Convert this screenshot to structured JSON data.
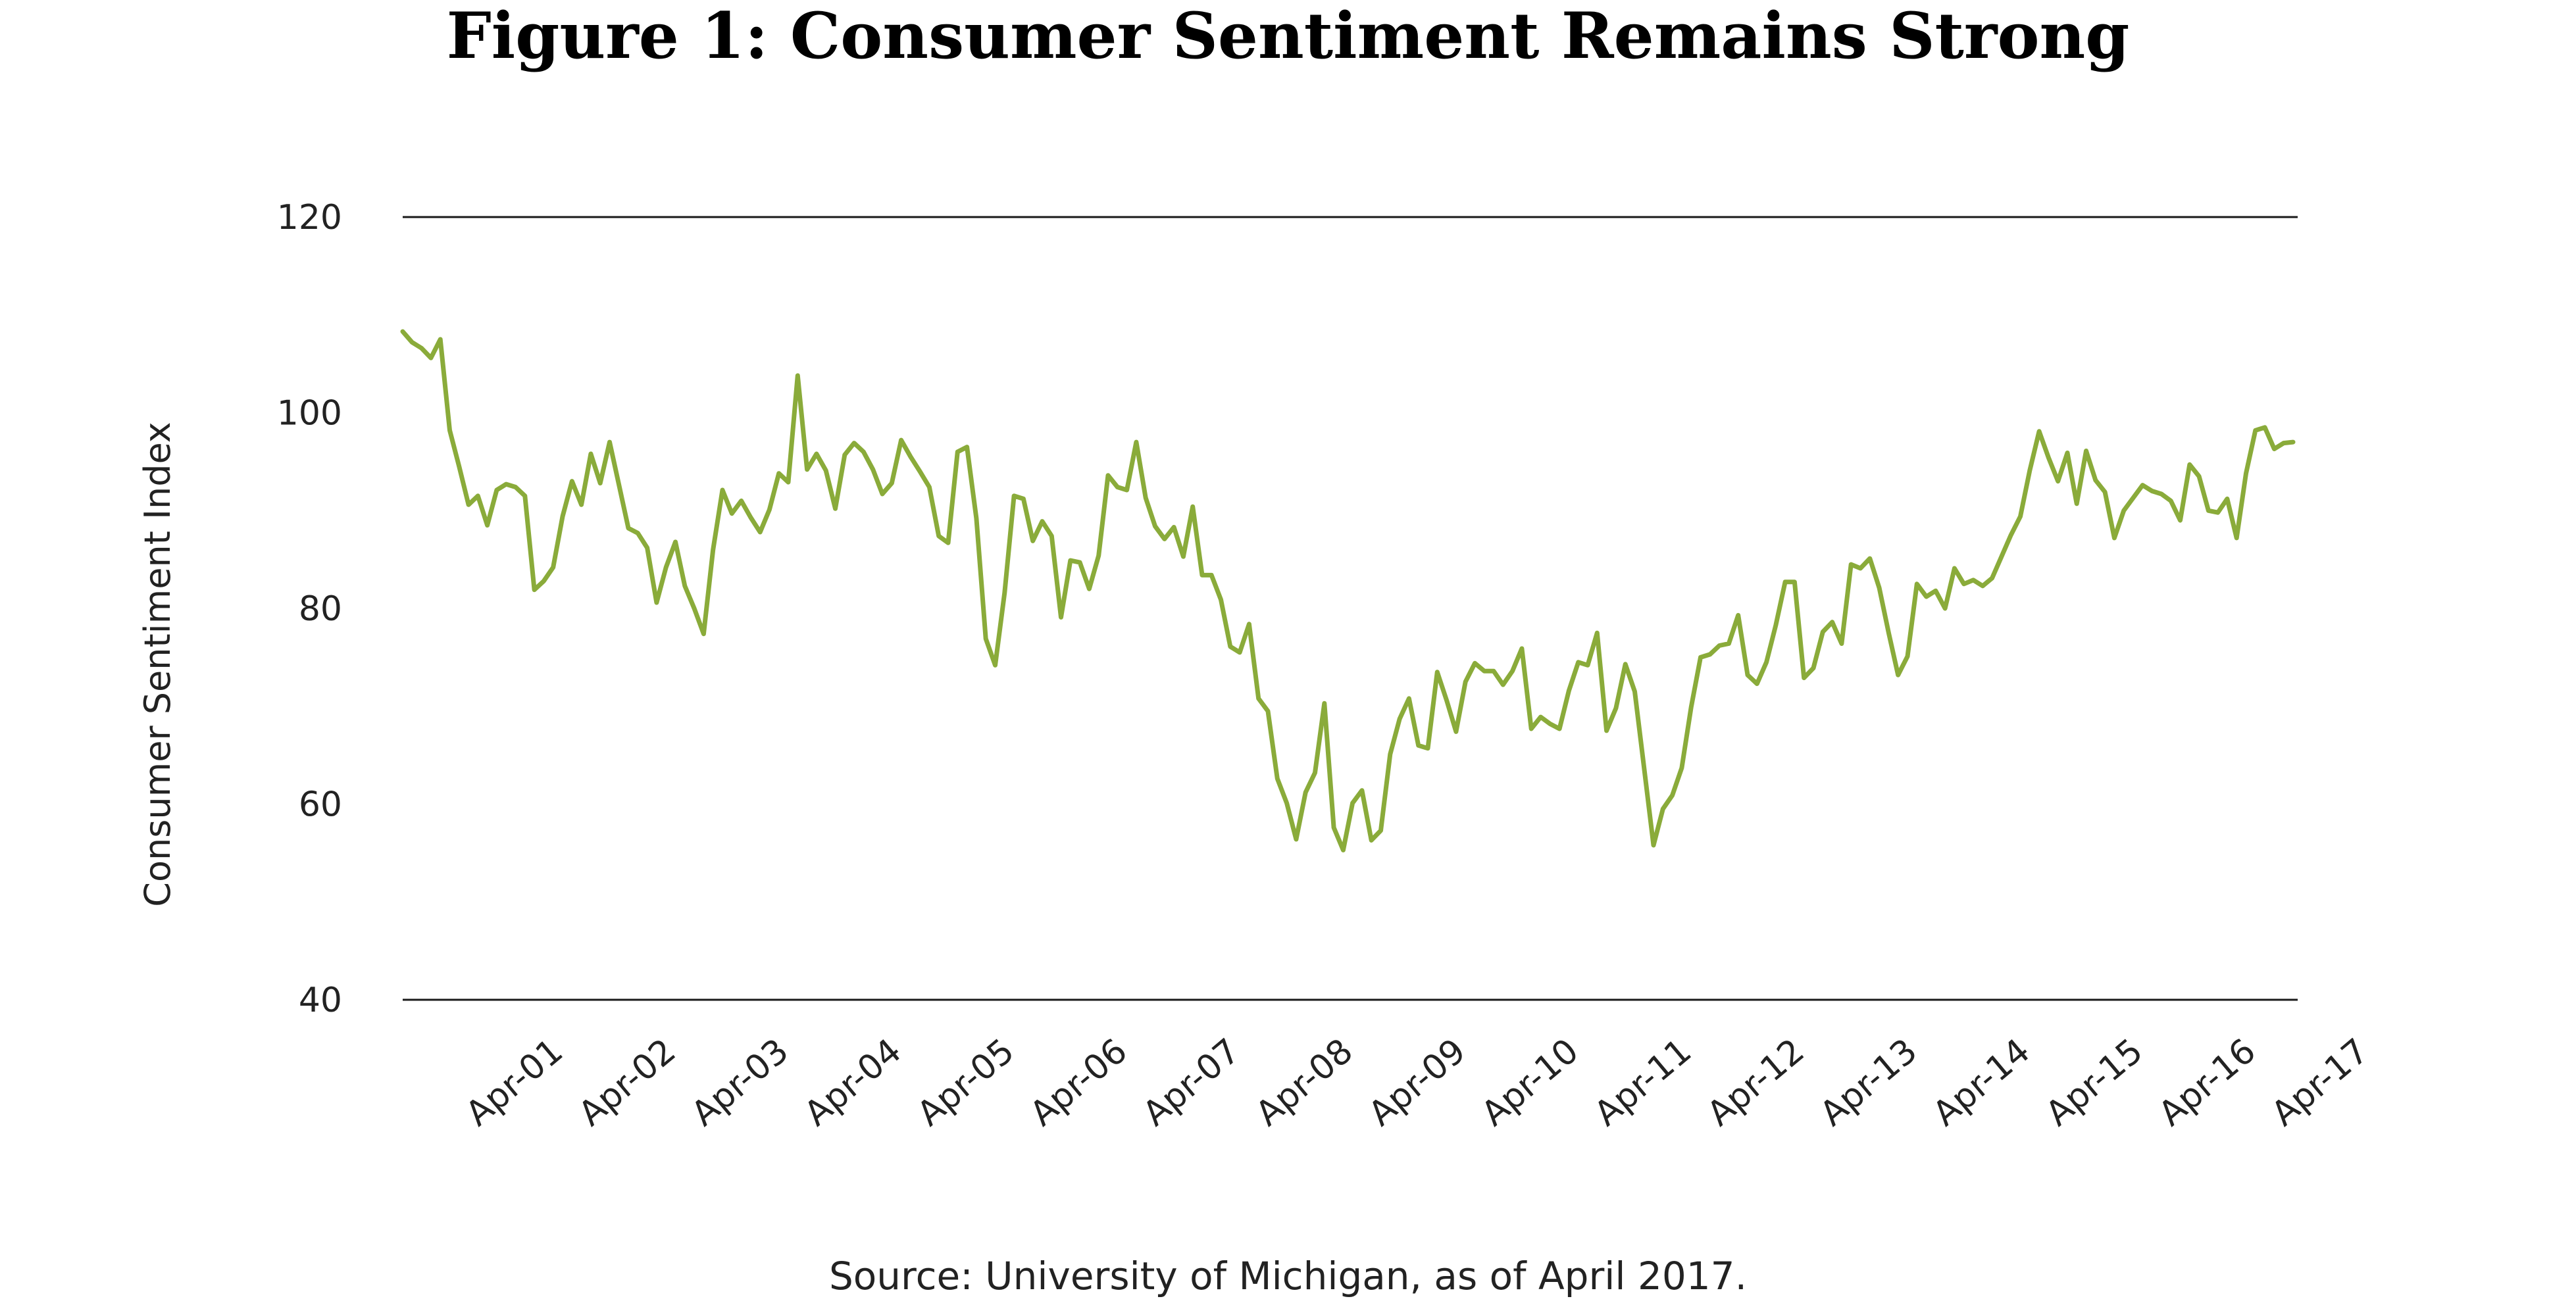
{
  "title": "Figure 1: Consumer Sentiment Remains Strong",
  "source": "Source: University of Michigan, as of April 2017.",
  "colors": {
    "line": "#8aab3a",
    "grid": "#1a1a1a",
    "text": "#222222"
  },
  "chart_data": {
    "type": "line",
    "title": "Figure 1: Consumer Sentiment Remains Strong",
    "xlabel": "",
    "ylabel": "Consumer Sentiment Index",
    "ylim": [
      40,
      120
    ],
    "yticks": [
      40,
      60,
      80,
      100,
      120
    ],
    "grid": "horizontal at 40 and 120",
    "legend": "none",
    "x_start": "Jan-00",
    "x_end": "Apr-17",
    "xtick_labels": [
      "Apr-01",
      "Apr-02",
      "Apr-03",
      "Apr-04",
      "Apr-05",
      "Apr-06",
      "Apr-07",
      "Apr-08",
      "Apr-09",
      "Apr-10",
      "Apr-11",
      "Apr-12",
      "Apr-13",
      "Apr-14",
      "Apr-15",
      "Apr-16",
      "Apr-17"
    ],
    "series": [
      {
        "values": [
          108.3,
          107.2,
          106.6,
          105.6,
          107.5,
          98.2,
          94.5,
          90.6,
          91.5,
          88.5,
          92.1,
          92.7,
          92.4,
          91.5,
          81.9,
          82.8,
          84.2,
          89.4,
          93.0,
          90.6,
          95.8,
          92.8,
          97.0,
          92.6,
          88.2,
          87.7,
          86.2,
          80.6,
          84.2,
          86.8,
          82.3,
          80.0,
          77.4,
          86.0,
          92.1,
          89.7,
          91.0,
          89.3,
          87.8,
          90.1,
          93.8,
          92.9,
          103.8,
          94.2,
          95.8,
          94.1,
          90.2,
          95.7,
          96.9,
          96.0,
          94.2,
          91.7,
          92.8,
          97.2,
          95.5,
          94.0,
          92.4,
          87.4,
          86.7,
          96.0,
          96.5,
          89.2,
          76.9,
          74.2,
          81.6,
          91.5,
          91.2,
          86.9,
          88.9,
          87.4,
          79.1,
          84.9,
          84.7,
          82.0,
          85.4,
          93.6,
          92.4,
          92.1,
          97.0,
          91.3,
          88.4,
          87.1,
          88.3,
          85.3,
          90.4,
          83.4,
          83.4,
          80.9,
          76.1,
          75.5,
          78.4,
          70.8,
          69.5,
          62.6,
          60.1,
          56.4,
          61.2,
          63.2,
          70.3,
          57.6,
          55.3,
          60.1,
          61.4,
          56.3,
          57.3,
          65.1,
          68.7,
          70.8,
          66.0,
          65.7,
          73.5,
          70.6,
          67.4,
          72.5,
          74.4,
          73.6,
          73.6,
          72.2,
          73.6,
          75.9,
          67.7,
          68.9,
          68.2,
          67.7,
          71.6,
          74.5,
          74.2,
          77.5,
          67.5,
          69.8,
          74.3,
          71.5,
          63.7,
          55.8,
          59.5,
          60.9,
          63.7,
          69.9,
          75.0,
          75.3,
          76.2,
          76.4,
          79.3,
          73.2,
          72.3,
          74.5,
          78.3,
          82.7,
          82.7,
          72.9,
          73.9,
          77.6,
          78.6,
          76.4,
          84.5,
          84.1,
          85.1,
          82.1,
          77.5,
          73.2,
          75.1,
          82.5,
          81.2,
          81.8,
          80.0,
          84.1,
          82.5,
          82.9,
          82.3,
          83.1,
          85.3,
          87.5,
          89.4,
          94.1,
          98.1,
          95.4,
          93.0,
          95.9,
          90.7,
          96.1,
          93.1,
          91.9,
          87.2,
          90.0,
          91.3,
          92.6,
          92.0,
          91.7,
          91.0,
          89.0,
          94.7,
          93.5,
          90.0,
          89.8,
          91.2,
          87.2,
          93.8,
          98.2,
          98.5,
          96.3,
          96.9,
          97.0
        ]
      }
    ]
  }
}
